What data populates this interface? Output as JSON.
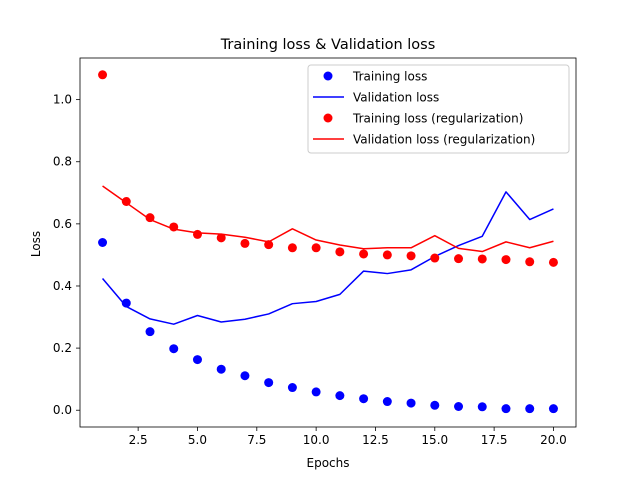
{
  "chart_data": {
    "type": "line",
    "title": "Training loss & Validation loss",
    "xlabel": "Epochs",
    "ylabel": "Loss",
    "xlim": [
      0.05,
      20.95
    ],
    "ylim": [
      -0.054,
      1.134
    ],
    "x_ticks": [
      2.5,
      5.0,
      7.5,
      10.0,
      12.5,
      15.0,
      17.5,
      20.0
    ],
    "x_tick_labels": [
      "2.5",
      "5.0",
      "7.5",
      "10.0",
      "12.5",
      "15.0",
      "17.5",
      "20.0"
    ],
    "y_ticks": [
      0.0,
      0.2,
      0.4,
      0.6,
      0.8,
      1.0
    ],
    "y_tick_labels": [
      "0.0",
      "0.2",
      "0.4",
      "0.6",
      "0.8",
      "1.0"
    ],
    "grid": false,
    "legend_position": "top-right",
    "x": [
      1,
      2,
      3,
      4,
      5,
      6,
      7,
      8,
      9,
      10,
      11,
      12,
      13,
      14,
      15,
      16,
      17,
      18,
      19,
      20
    ],
    "series": [
      {
        "name": "Training loss",
        "style": "markers",
        "color": "#0000ff",
        "values": [
          0.54,
          0.345,
          0.253,
          0.198,
          0.163,
          0.132,
          0.111,
          0.089,
          0.073,
          0.059,
          0.047,
          0.037,
          0.028,
          0.023,
          0.016,
          0.012,
          0.011,
          0.005,
          0.005,
          0.005
        ]
      },
      {
        "name": "Validation loss",
        "style": "line",
        "color": "#0000ff",
        "values": [
          0.424,
          0.334,
          0.294,
          0.277,
          0.305,
          0.284,
          0.293,
          0.31,
          0.343,
          0.35,
          0.373,
          0.448,
          0.44,
          0.452,
          0.495,
          0.53,
          0.56,
          0.703,
          0.614,
          0.648
        ]
      },
      {
        "name": "Training loss (regularization)",
        "style": "markers",
        "color": "#ff0000",
        "values": [
          1.08,
          0.672,
          0.62,
          0.59,
          0.566,
          0.555,
          0.537,
          0.533,
          0.523,
          0.523,
          0.51,
          0.503,
          0.5,
          0.497,
          0.49,
          0.488,
          0.487,
          0.485,
          0.478,
          0.476
        ]
      },
      {
        "name": "Validation loss (regularization)",
        "style": "line",
        "color": "#ff0000",
        "values": [
          0.722,
          0.668,
          0.614,
          0.583,
          0.571,
          0.567,
          0.557,
          0.542,
          0.584,
          0.548,
          0.532,
          0.52,
          0.523,
          0.523,
          0.562,
          0.521,
          0.511,
          0.542,
          0.523,
          0.544
        ]
      }
    ]
  }
}
